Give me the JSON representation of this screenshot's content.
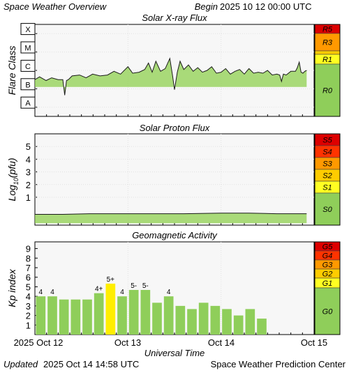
{
  "header": {
    "title": "Space Weather Overview",
    "begin_label": "Begin",
    "begin_value": "2025 10 12 00:00 UTC"
  },
  "footer": {
    "updated_label": "Updated",
    "updated_value": "2025 Oct 14 14:58 UTC",
    "center": "Space Weather Prediction Center"
  },
  "time_axis": {
    "title": "Universal Time",
    "ticks": [
      "2025 Oct 12",
      "Oct 13",
      "Oct 14",
      "Oct 15"
    ]
  },
  "colors": {
    "panel_bg": "#f7f7f7",
    "grid": "#e2e2e2",
    "bar_green": "#8fce5a",
    "bar_yellow": "#ffee00",
    "fill_green": "#8fd04f",
    "scale_green": "#8fce5a",
    "scale_yellow": "#ffff22",
    "scale_gold": "#ffcc00",
    "scale_orange": "#ff9900",
    "scale_red_orange": "#ff6600",
    "scale_red": "#dd0000"
  },
  "chart_data": [
    {
      "type": "line",
      "title": "Solar X-ray Flux",
      "ylabel": "Flare Class",
      "ytick_labels": [
        "A",
        "B",
        "C",
        "M",
        "X"
      ],
      "y_unit": "log10 W/m²",
      "ylim": [
        -8.5,
        -3.5
      ],
      "xlim": [
        0,
        3
      ],
      "x_unit": "days since 2025 Oct 12 00:00 UTC",
      "scale": {
        "labels": [
          "R5",
          "R3",
          "R1",
          "R0"
        ],
        "colors": [
          "#dd0000",
          "#ff9900",
          "#ffff22",
          "#8fce5a"
        ]
      },
      "series": [
        {
          "values_x": [
            0,
            0.05,
            0.12,
            0.18,
            0.25,
            0.3,
            0.32,
            0.34,
            0.36,
            0.4,
            0.48,
            0.55,
            0.62,
            0.7,
            0.78,
            0.85,
            0.92,
            1.0,
            1.05,
            1.12,
            1.18,
            1.22,
            1.26,
            1.3,
            1.35,
            1.4,
            1.45,
            1.48,
            1.5,
            1.53,
            1.56,
            1.6,
            1.65,
            1.7,
            1.75,
            1.8,
            1.85,
            1.9,
            1.95,
            2.0,
            2.05,
            2.1,
            2.15,
            2.2,
            2.25,
            2.3,
            2.35,
            2.4,
            2.45,
            2.5,
            2.55,
            2.6,
            2.63,
            2.65,
            2.67,
            2.7,
            2.75,
            2.8,
            2.82,
            2.84,
            2.86,
            2.88,
            2.9,
            2.92,
            2.95,
            2.98,
            3.0
          ],
          "values": [
            -6.5,
            -6.35,
            -6.55,
            -6.4,
            -6.5,
            -6.5,
            -7.35,
            -6.55,
            -6.5,
            -6.3,
            -6.25,
            -6.4,
            -6.2,
            -6.3,
            -6.25,
            -6.05,
            -6.2,
            -5.8,
            -6.15,
            -6.1,
            -5.95,
            -5.6,
            -6.1,
            -5.5,
            -6.05,
            -5.9,
            -5.35,
            -6.3,
            -7.05,
            -6.1,
            -5.5,
            -5.95,
            -5.7,
            -6.05,
            -5.85,
            -6.1,
            -6.0,
            -5.8,
            -6.15,
            -6.1,
            -5.9,
            -6.2,
            -6.05,
            -5.95,
            -6.2,
            -5.9,
            -6.15,
            -6.1,
            -6.15,
            -6.0,
            -6.25,
            -6.2,
            -6.25,
            -6.6,
            -6.2,
            -6.25,
            -6.05,
            -6.05,
            -5.85,
            -5.55,
            -6.1,
            -6.15,
            -6.05,
            -6.0,
            -6.05,
            -6.15,
            -6.2
          ]
        }
      ]
    },
    {
      "type": "line",
      "title": "Solar Proton Flux",
      "ylabel": "Log10(pfu)",
      "yticks": [
        1,
        2,
        3,
        4,
        5
      ],
      "ylim": [
        -1.2,
        6
      ],
      "xlim": [
        0,
        3
      ],
      "x_unit": "days since 2025 Oct 12 00:00 UTC",
      "scale": {
        "labels": [
          "S5",
          "S4",
          "S3",
          "S2",
          "S1",
          "S0"
        ],
        "colors": [
          "#dd0000",
          "#ff3300",
          "#ff9900",
          "#ffcc00",
          "#ffff22",
          "#8fce5a"
        ]
      },
      "series": [
        {
          "values_x": [
            0,
            0.3,
            0.6,
            1.0,
            1.3,
            1.6,
            2.0,
            2.3,
            2.6,
            3.0
          ],
          "values": [
            -0.35,
            -0.35,
            -0.3,
            -0.3,
            -0.3,
            -0.3,
            -0.25,
            -0.25,
            -0.3,
            -0.3
          ]
        }
      ]
    },
    {
      "type": "bar",
      "title": "Geomagnetic Activity",
      "ylabel": "Kp index",
      "yticks": [
        1,
        2,
        3,
        4,
        5,
        6,
        7,
        8,
        9
      ],
      "ylim": [
        0,
        9.7
      ],
      "x_unit": "3-hour intervals from 2025 Oct 12 00:00 UTC",
      "scale": {
        "labels": [
          "G5",
          "G4",
          "G3",
          "G2",
          "G1",
          "G0"
        ],
        "colors": [
          "#dd0000",
          "#ff3300",
          "#ff9900",
          "#ffcc00",
          "#ffff22",
          "#8fce5a"
        ]
      },
      "values": [
        4,
        4,
        3.67,
        3.67,
        3.67,
        4.33,
        5.33,
        4,
        4.67,
        4.67,
        3.33,
        4,
        3,
        2.67,
        3.33,
        3,
        2.67,
        2,
        2.67,
        1.67
      ],
      "bar_labels": [
        "4",
        "4",
        "",
        "",
        "",
        "4+",
        "5+",
        "4",
        "5-",
        "5-",
        "",
        "4",
        "",
        "",
        "",
        "",
        "",
        "",
        "",
        ""
      ],
      "bar_colors": [
        "green",
        "green",
        "green",
        "green",
        "green",
        "green",
        "yellow",
        "green",
        "green",
        "green",
        "green",
        "green",
        "green",
        "green",
        "green",
        "green",
        "green",
        "green",
        "green",
        "green"
      ]
    }
  ]
}
